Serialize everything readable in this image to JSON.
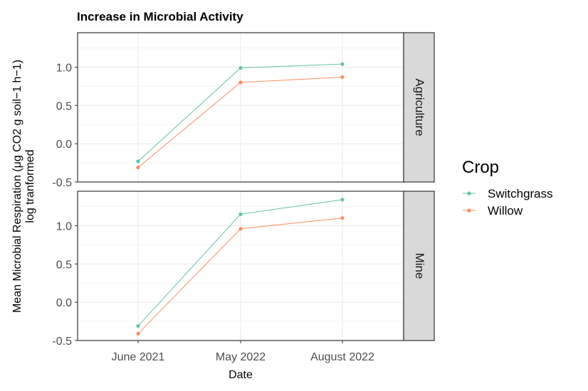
{
  "chart_data": {
    "type": "line",
    "title": "Increase in Microbial Activity",
    "xlabel": "Date",
    "ylabel_line1": "Mean Microbial Respiration (μg CO2 g soil−1 h−1)",
    "ylabel_line2": "log tranformed",
    "categories": [
      "June 2021",
      "May 2022",
      "August 2022"
    ],
    "yticks": [
      -0.5,
      0.0,
      0.5,
      1.0
    ],
    "ytick_labels": [
      "-0.5",
      "0.0",
      "0.5",
      "1.0"
    ],
    "ylim": [
      -0.5,
      1.45
    ],
    "grid": true,
    "legend": {
      "title": "Crop",
      "position": "right",
      "entries": [
        "Switchgrass",
        "Willow"
      ]
    },
    "colors": {
      "Switchgrass": "#66c2a5",
      "Willow": "#fc8d62"
    },
    "facets": [
      {
        "label": "Agriculture",
        "series": [
          {
            "name": "Switchgrass",
            "values": [
              -0.23,
              0.99,
              1.04
            ]
          },
          {
            "name": "Willow",
            "values": [
              -0.31,
              0.8,
              0.87
            ]
          }
        ]
      },
      {
        "label": "Mine",
        "series": [
          {
            "name": "Switchgrass",
            "values": [
              -0.31,
              1.15,
              1.34
            ]
          },
          {
            "name": "Willow",
            "values": [
              -0.41,
              0.96,
              1.1
            ]
          }
        ]
      }
    ]
  }
}
